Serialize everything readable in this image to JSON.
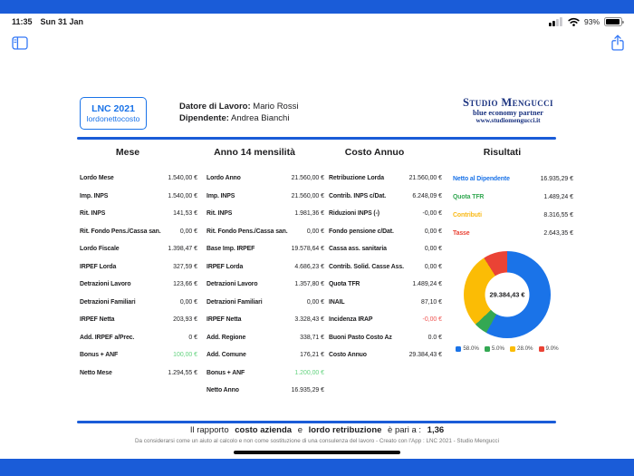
{
  "status_bar": {
    "time": "11:35",
    "date": "Sun 31 Jan",
    "battery_percent": "93%"
  },
  "header": {
    "app_badge": {
      "title": "LNC 2021",
      "subtitle": "lordonettocosto"
    },
    "employer_label": "Datore di Lavoro:",
    "employer_value": "Mario Rossi",
    "employee_label": "Dipendente:",
    "employee_value": "Andrea Bianchi",
    "studio": {
      "name": "Studio Mengucci",
      "tagline": "blue economy partner",
      "website": "www.studiomengucci.it"
    }
  },
  "columns": [
    {
      "title": "Mese",
      "rows": [
        {
          "label": "Lordo Mese",
          "value": "1.540,00 €"
        },
        {
          "label": "Imp. INPS",
          "value": "1.540,00 €"
        },
        {
          "label": "Rit. INPS",
          "value": "141,53 €"
        },
        {
          "label": "Rit. Fondo Pens./Cassa san.",
          "value": "0,00 €"
        },
        {
          "label": "Lordo Fiscale",
          "value": "1.398,47 €"
        },
        {
          "label": "IRPEF Lorda",
          "value": "327,59 €"
        },
        {
          "label": "Detrazioni Lavoro",
          "value": "123,66 €"
        },
        {
          "label": "Detrazioni Familiari",
          "value": "0,00 €"
        },
        {
          "label": "IRPEF Netta",
          "value": "203,93 €"
        },
        {
          "label": "Add. IRPEF a/Prec.",
          "value": "0 €"
        },
        {
          "label": "Bonus + ANF",
          "value": "100,00 €",
          "value_color": "#63d37f"
        },
        {
          "label": "Netto Mese",
          "value": "1.294,55 €"
        }
      ]
    },
    {
      "title": "Anno 14 mensilità",
      "rows": [
        {
          "label": "Lordo Anno",
          "value": "21.560,00 €"
        },
        {
          "label": "Imp. INPS",
          "value": "21.560,00 €"
        },
        {
          "label": "Rit. INPS",
          "value": "1.981,36 €"
        },
        {
          "label": "Rit. Fondo Pens./Cassa san.",
          "value": "0,00 €"
        },
        {
          "label": "Base Imp. IRPEF",
          "value": "19.578,64 €"
        },
        {
          "label": "IRPEF Lorda",
          "value": "4.686,23 €"
        },
        {
          "label": "Detrazioni Lavoro",
          "value": "1.357,80 €"
        },
        {
          "label": "Detrazioni Familiari",
          "value": "0,00 €"
        },
        {
          "label": "IRPEF Netta",
          "value": "3.328,43 €"
        },
        {
          "label": "Add. Regione",
          "value": "338,71 €"
        },
        {
          "label": "Add. Comune",
          "value": "176,21 €"
        },
        {
          "label": "Bonus + ANF",
          "value": "1.200,00 €",
          "value_color": "#63d37f"
        },
        {
          "label": "Netto Anno",
          "value": "16.935,29 €"
        }
      ]
    },
    {
      "title": "Costo Annuo",
      "rows": [
        {
          "label": "Retribuzione Lorda",
          "value": "21.560,00 €"
        },
        {
          "label": "Contrib. INPS c/Dat.",
          "value": "6.248,09 €"
        },
        {
          "label": "Riduzioni INPS (-)",
          "value": "-0,00 €"
        },
        {
          "label": "Fondo pensione c/Dat.",
          "value": "0,00 €"
        },
        {
          "label": "Cassa ass. sanitaria",
          "value": "0,00 €"
        },
        {
          "label": "Contrib. Solid. Casse Ass.",
          "value": "0,00 €"
        },
        {
          "label": "Quota TFR",
          "value": "1.489,24 €"
        },
        {
          "label": "INAIL",
          "value": "87,10 €"
        },
        {
          "label": "Incidenza IRAP",
          "value": "-0,00 €",
          "value_color": "#ef5350"
        },
        {
          "label": "Buoni Pasto Costo Az",
          "value": "0.0 €"
        },
        {
          "label": "Costo Annuo",
          "value": "29.384,43 €"
        }
      ]
    }
  ],
  "results": {
    "title": "Risultati",
    "rows": [
      {
        "label": "Netto al Dipendente",
        "value": "16.935,29 €",
        "label_color": "#1a73e8"
      },
      {
        "label": "Quota TFR",
        "value": "1.489,24 €",
        "label_color": "#34a853"
      },
      {
        "label": "Contributi",
        "value": "8.316,55 €",
        "label_color": "#f9b916"
      },
      {
        "label": "Tasse",
        "value": "2.643,35 €",
        "label_color": "#ea4335"
      }
    ],
    "donut": {
      "center_label": "29.384,43 €",
      "segments": [
        {
          "label": "58.0%",
          "pct": 58.0,
          "color": "#1a73e8"
        },
        {
          "label": "5.0%",
          "pct": 5.0,
          "color": "#34a853"
        },
        {
          "label": "28.0%",
          "pct": 28.0,
          "color": "#fbbc05"
        },
        {
          "label": "9.0%",
          "pct": 9.0,
          "color": "#ea4335"
        }
      ]
    }
  },
  "chart_data": {
    "type": "pie",
    "title": "Costo Annuo breakdown",
    "categories": [
      "Netto al Dipendente",
      "Quota TFR",
      "Contributi",
      "Tasse"
    ],
    "values": [
      58.0,
      5.0,
      28.0,
      9.0
    ],
    "colors": [
      "#1a73e8",
      "#34a853",
      "#fbbc05",
      "#ea4335"
    ],
    "center_label": "29.384,43 €",
    "legend_position": "bottom"
  },
  "footer": {
    "ratio_prefix": "Il rapporto",
    "ratio_term1": "costo azienda",
    "ratio_conj": "e",
    "ratio_term2": "lordo retribuzione",
    "ratio_suffix": "è pari a :",
    "ratio_value": "1,36",
    "disclaimer": "Da considerarsi come un aiuto al calcolo e non come sostituzione di una consulenza del lavoro  -  Creato con l'App : LNC 2021 - Studio Mengucci"
  },
  "icons": [
    "sidebar-toggle-icon",
    "share-icon",
    "cellular-signal-icon",
    "wifi-icon",
    "battery-icon"
  ],
  "colors": {
    "band_blue": "#1a5cd8",
    "ios_tint_blue": "#3478f6",
    "badge_blue": "#1a73e8",
    "studio_navy": "#1b3380",
    "bonus_green": "#63d37f",
    "negative_red": "#ef5350"
  }
}
